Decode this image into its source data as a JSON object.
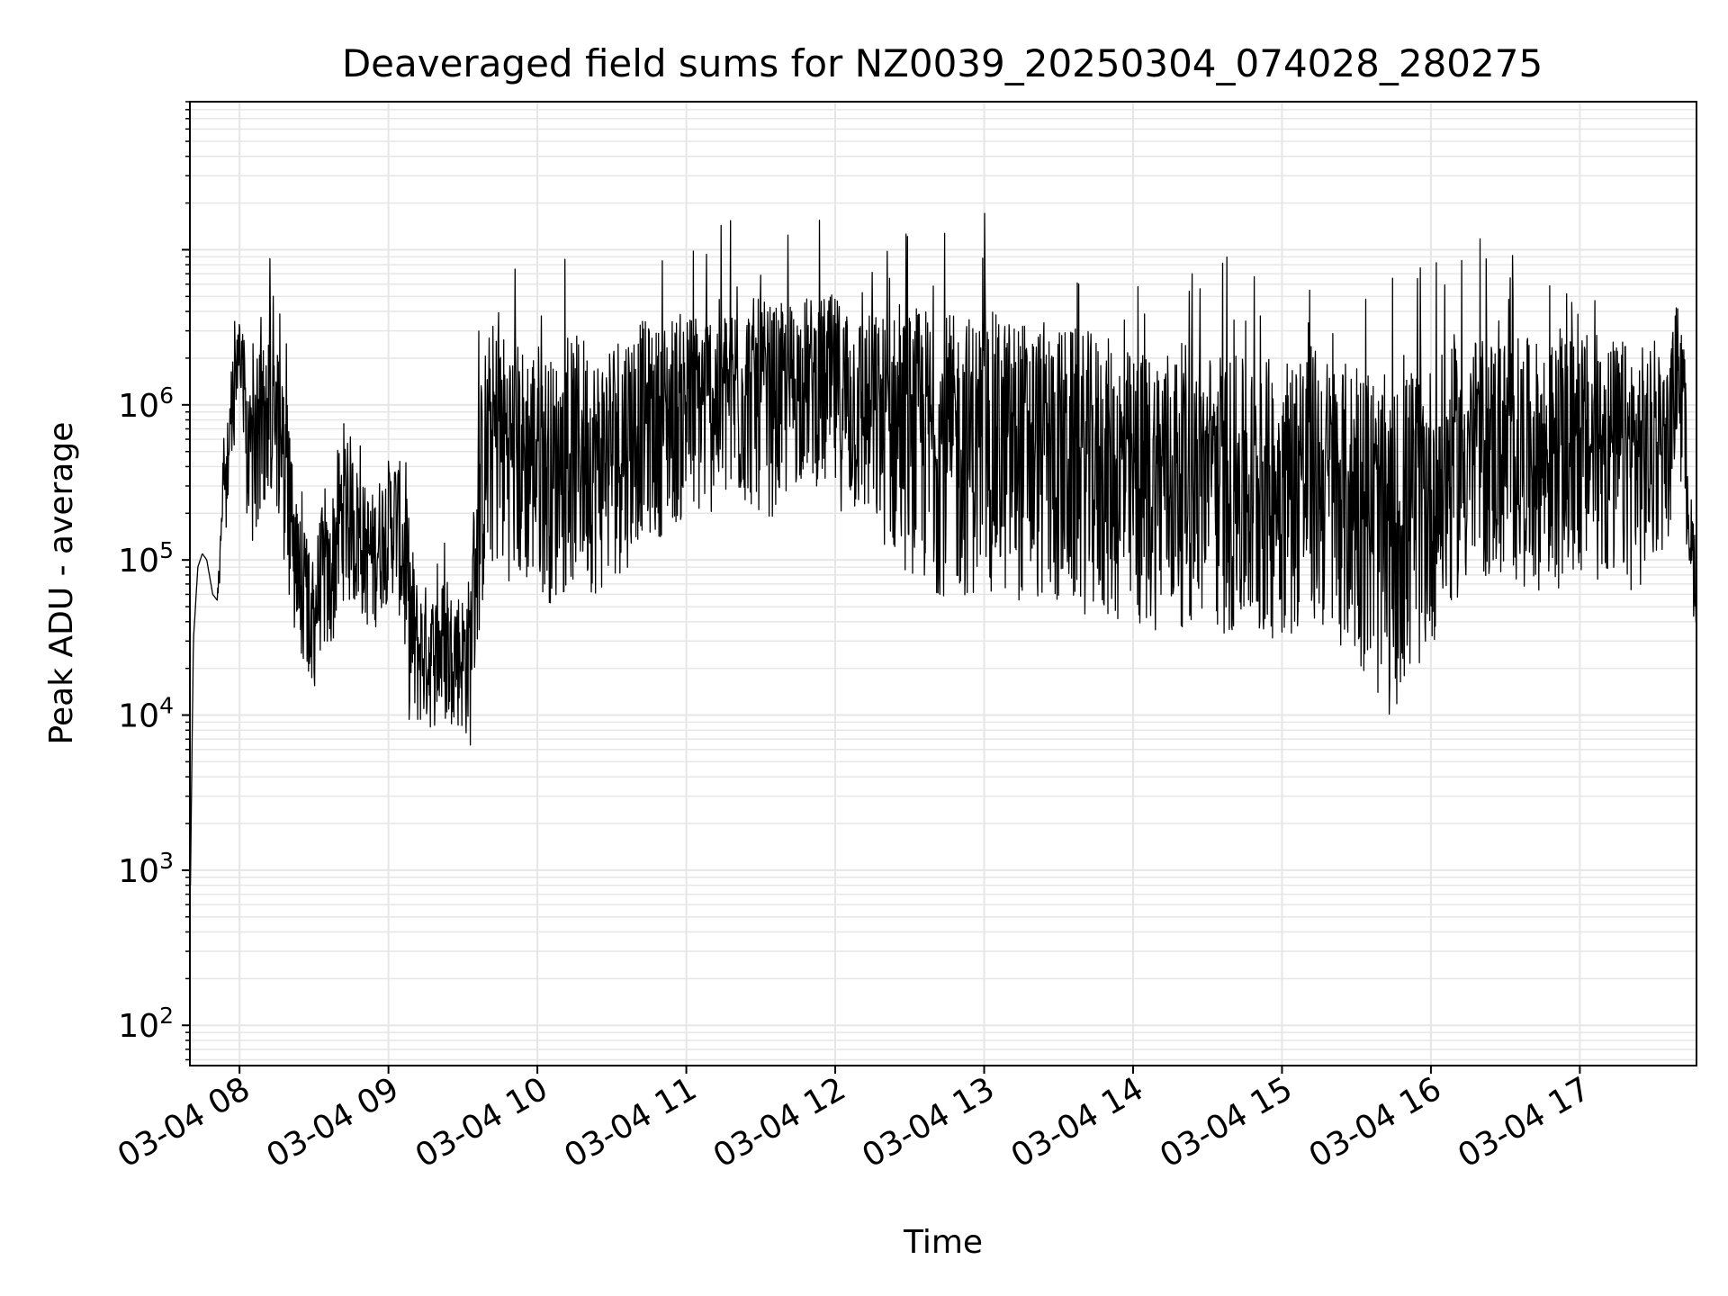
{
  "chart_data": {
    "type": "line",
    "title": "Deaveraged field sums for NZ0039_20250304_074028_280275",
    "xlabel": "Time",
    "ylabel": "Peak ADU - average",
    "yscale": "log",
    "ylim": [
      55,
      90000000
    ],
    "xlim": [
      "03-04 07:40",
      "03-04 17:47"
    ],
    "grid": true,
    "line_color": "#000000",
    "grid_color": "#e6e6e6",
    "x_ticks": [
      "03-04 08",
      "03-04 09",
      "03-04 10",
      "03-04 11",
      "03-04 12",
      "03-04 13",
      "03-04 14",
      "03-04 15",
      "03-04 16",
      "03-04 17"
    ],
    "y_ticks": [
      {
        "base": "10",
        "exp": "2",
        "value": 100
      },
      {
        "base": "10",
        "exp": "3",
        "value": 1000
      },
      {
        "base": "10",
        "exp": "4",
        "value": 10000
      },
      {
        "base": "10",
        "exp": "5",
        "value": 100000
      },
      {
        "base": "10",
        "exp": "6",
        "value": 1000000
      }
    ],
    "series": [
      {
        "time_hours": [
          7.67,
          7.69,
          7.72,
          7.75,
          7.78,
          7.82,
          7.85,
          7.9,
          7.95,
          8.0,
          8.03,
          8.06,
          8.1,
          8.15,
          8.2,
          8.25,
          8.3,
          8.35,
          8.4,
          8.45,
          8.5,
          8.55,
          8.6,
          8.65,
          8.7,
          8.75,
          8.8,
          8.85,
          8.9,
          8.95,
          9.0,
          9.05,
          9.1,
          9.15,
          9.2,
          9.25,
          9.3,
          9.35,
          9.4,
          9.45,
          9.5,
          9.55,
          9.6,
          9.65,
          9.7,
          9.8,
          9.9,
          10.0,
          10.1,
          10.2,
          10.3,
          10.4,
          10.5,
          10.6,
          10.7,
          10.8,
          10.9,
          11.0,
          11.2,
          11.4,
          11.6,
          11.8,
          12.0,
          12.2,
          12.4,
          12.6,
          12.8,
          13.0,
          13.2,
          13.4,
          13.6,
          13.8,
          14.0,
          14.2,
          14.4,
          14.6,
          14.8,
          15.0,
          15.2,
          15.4,
          15.6,
          15.7,
          15.8,
          15.9,
          16.0,
          16.2,
          16.4,
          16.6,
          16.8,
          17.0,
          17.2,
          17.4,
          17.5,
          17.6,
          17.65,
          17.7,
          17.75,
          17.78
        ],
        "values": [
          800,
          30000,
          90000,
          110000,
          100000,
          60000,
          55000,
          400000,
          900000,
          2500000,
          1500000,
          400000,
          600000,
          900000,
          1200000,
          1000000,
          400000,
          150000,
          90000,
          60000,
          45000,
          90000,
          70000,
          150000,
          250000,
          200000,
          150000,
          120000,
          110000,
          150000,
          180000,
          200000,
          120000,
          40000,
          27000,
          28000,
          25000,
          30000,
          26000,
          28000,
          25000,
          27000,
          200000,
          500000,
          700000,
          600000,
          500000,
          550000,
          400000,
          500000,
          600000,
          450000,
          600000,
          700000,
          900000,
          800000,
          1000000,
          1000000,
          1200000,
          1300000,
          1100000,
          1600000,
          1300000,
          1000000,
          800000,
          700000,
          600000,
          650000,
          600000,
          550000,
          500000,
          450000,
          350000,
          400000,
          400000,
          350000,
          300000,
          350000,
          400000,
          300000,
          250000,
          120000,
          200000,
          250000,
          300000,
          500000,
          600000,
          550000,
          500000,
          600000,
          550000,
          500000,
          550000,
          600000,
          2000000,
          800000,
          120000,
          90000
        ],
        "spread": [
          0,
          0,
          0,
          0,
          0,
          0,
          0,
          0.4,
          0.3,
          0.2,
          0.3,
          0.5,
          0.5,
          0.5,
          0.5,
          0.5,
          0.5,
          0.5,
          0.4,
          0.4,
          0.4,
          0.4,
          0.4,
          0.5,
          0.5,
          0.5,
          0.4,
          0.4,
          0.4,
          0.4,
          0.4,
          0.4,
          0.5,
          0.6,
          0.4,
          0.4,
          0.4,
          0.4,
          0.4,
          0.4,
          0.4,
          0.5,
          0.7,
          0.7,
          0.7,
          0.7,
          0.7,
          0.7,
          0.7,
          0.7,
          0.7,
          0.7,
          0.7,
          0.7,
          0.6,
          0.6,
          0.6,
          0.6,
          0.6,
          0.6,
          0.6,
          0.5,
          0.6,
          0.6,
          0.7,
          0.8,
          0.8,
          0.8,
          0.8,
          0.8,
          0.8,
          0.8,
          0.8,
          0.8,
          0.8,
          0.8,
          0.8,
          0.8,
          0.8,
          0.8,
          0.9,
          0.9,
          0.9,
          0.9,
          0.8,
          0.7,
          0.7,
          0.7,
          0.7,
          0.7,
          0.7,
          0.7,
          0.6,
          0.5,
          0.4,
          0.5,
          0.3,
          0.3
        ]
      }
    ]
  }
}
